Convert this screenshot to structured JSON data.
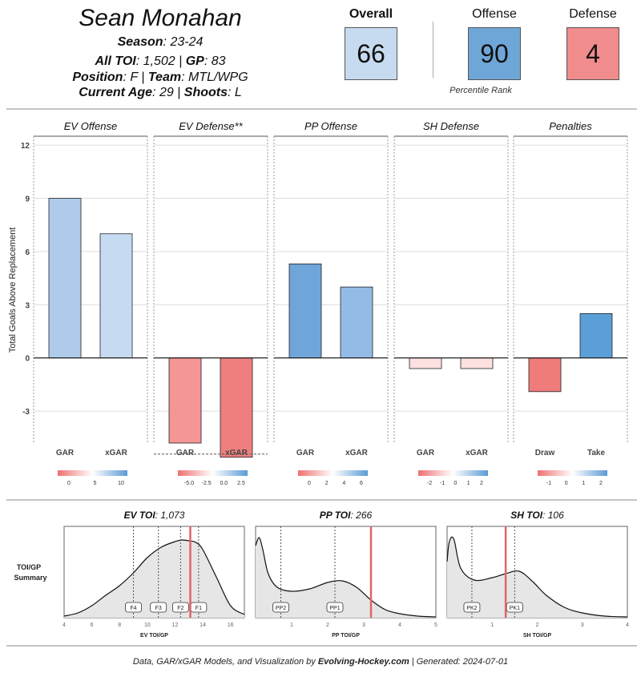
{
  "header": {
    "player_name": "Sean Monahan",
    "season_label": "Season",
    "season_value": "23-24",
    "toi_label": "All TOI",
    "toi_value": "1,502",
    "gp_label": "GP",
    "gp_value": "83",
    "position_label": "Position",
    "position_value": "F",
    "team_label": "Team",
    "team_value": "MTL/WPG",
    "age_label": "Current Age",
    "age_value": "29",
    "shoots_label": "Shoots",
    "shoots_value": "L"
  },
  "ranks": {
    "overall_label": "Overall",
    "overall_value": "66",
    "offense_label": "Offense",
    "offense_value": "90",
    "defense_label": "Defense",
    "defense_value": "4",
    "percentile_caption": "Percentile Rank",
    "colors": {
      "overall": "#c6dbef",
      "offense": "#6fa6d8",
      "defense": "#f08c8c"
    }
  },
  "chart_data": [
    {
      "type": "bar",
      "ylabel": "Total Goals Above Replacement",
      "ylim": [
        -4.8,
        12.5
      ],
      "yticks": [
        -3,
        0,
        3,
        6,
        9,
        12
      ],
      "grid": true,
      "panels": [
        {
          "title": "EV Offense",
          "categories": [
            "GAR",
            "xGAR"
          ],
          "values": [
            9.0,
            7.0
          ],
          "colors": [
            "#aecbea",
            "#c6dbf1"
          ],
          "legend": {
            "ticks": [
              "0",
              "5",
              "10"
            ],
            "colors": [
              "#f07070",
              "#ffffff",
              "#5b9bd5"
            ]
          }
        },
        {
          "title": "EV Defense**",
          "categories": [
            "GAR",
            "xGAR"
          ],
          "values": [
            -4.8,
            -5.6
          ],
          "colors": [
            "#f49696",
            "#ef7f7f"
          ],
          "legend": {
            "ticks": [
              "-5.0",
              "-2.5",
              "0.0",
              "2.5"
            ],
            "colors": [
              "#f07070",
              "#ffffff",
              "#5b9bd5"
            ]
          }
        },
        {
          "title": "PP Offense",
          "categories": [
            "GAR",
            "xGAR"
          ],
          "values": [
            5.3,
            4.0
          ],
          "colors": [
            "#6fa5d9",
            "#93bbe5"
          ],
          "legend": {
            "ticks": [
              "0",
              "2",
              "4",
              "6"
            ],
            "colors": [
              "#f07070",
              "#ffffff",
              "#5b9bd5"
            ]
          }
        },
        {
          "title": "SH Defense",
          "categories": [
            "GAR",
            "xGAR"
          ],
          "values": [
            -0.6,
            -0.6
          ],
          "colors": [
            "#fde0e0",
            "#fde0e0"
          ],
          "legend": {
            "ticks": [
              "-2",
              "-1",
              "0",
              "1",
              "2"
            ],
            "colors": [
              "#f07070",
              "#ffffff",
              "#5b9bd5"
            ]
          }
        },
        {
          "title": "Penalties",
          "categories": [
            "Draw",
            "Take"
          ],
          "values": [
            -1.9,
            2.5
          ],
          "colors": [
            "#ef7b7b",
            "#5b9fd8"
          ],
          "legend": {
            "ticks": [
              "-1",
              "0",
              "1",
              "2"
            ],
            "colors": [
              "#f07070",
              "#ffffff",
              "#5b9bd5"
            ]
          }
        }
      ]
    },
    {
      "type": "area",
      "side_label": [
        "TOI/GP",
        "Summary"
      ],
      "panels": [
        {
          "title_label": "EV TOI",
          "title_value": "1,073",
          "xlabel": "EV TOI/GP",
          "xlim": [
            4,
            17
          ],
          "xticks": [
            4,
            6,
            8,
            10,
            12,
            14,
            16
          ],
          "player_value": 13.1,
          "markers": [
            {
              "label": "F4",
              "x": 9.0
            },
            {
              "label": "F3",
              "x": 10.8
            },
            {
              "label": "F2",
              "x": 12.4
            },
            {
              "label": "F1",
              "x": 13.7
            }
          ],
          "density": {
            "x": [
              4,
              5,
              6,
              7,
              8,
              9,
              10,
              11,
              12,
              12.5,
              13,
              13.5,
              14,
              15,
              16,
              17
            ],
            "y": [
              0.02,
              0.06,
              0.15,
              0.28,
              0.4,
              0.56,
              0.75,
              0.88,
              0.95,
              0.97,
              0.96,
              0.94,
              0.85,
              0.5,
              0.15,
              0.04
            ]
          }
        },
        {
          "title_label": "PP TOI",
          "title_value": "266",
          "xlabel": "PP TOI/GP",
          "xlim": [
            0,
            5
          ],
          "xticks": [
            1,
            2,
            3,
            4,
            5
          ],
          "player_value": 3.2,
          "markers": [
            {
              "label": "PP2",
              "x": 0.7
            },
            {
              "label": "PP1",
              "x": 2.2
            }
          ],
          "density": {
            "x": [
              0,
              0.1,
              0.2,
              0.35,
              0.6,
              1.0,
              1.5,
              2.0,
              2.4,
              2.8,
              3.2,
              3.6,
              4.0,
              4.5,
              5.0
            ],
            "y": [
              0.9,
              1.0,
              0.85,
              0.55,
              0.38,
              0.33,
              0.36,
              0.44,
              0.46,
              0.38,
              0.22,
              0.1,
              0.05,
              0.02,
              0.01
            ]
          }
        },
        {
          "title_label": "SH TOI",
          "title_value": "106",
          "xlabel": "SH TOI/GP",
          "xlim": [
            0,
            4
          ],
          "xticks": [
            1,
            2,
            3,
            4
          ],
          "player_value": 1.3,
          "markers": [
            {
              "label": "PK2",
              "x": 0.55
            },
            {
              "label": "PK1",
              "x": 1.5
            }
          ],
          "density": {
            "x": [
              0,
              0.05,
              0.15,
              0.3,
              0.6,
              1.0,
              1.3,
              1.6,
              1.9,
              2.2,
              2.6,
              3.0,
              3.5,
              4.0
            ],
            "y": [
              0.7,
              0.95,
              0.98,
              0.62,
              0.47,
              0.5,
              0.55,
              0.58,
              0.45,
              0.28,
              0.13,
              0.06,
              0.02,
              0.01
            ]
          }
        }
      ]
    }
  ],
  "footer": {
    "prefix": "Data, GAR/xGAR Models, and Visualization by ",
    "site": "Evolving-Hockey.com",
    "suffix": " | Generated: 2024-07-01"
  }
}
